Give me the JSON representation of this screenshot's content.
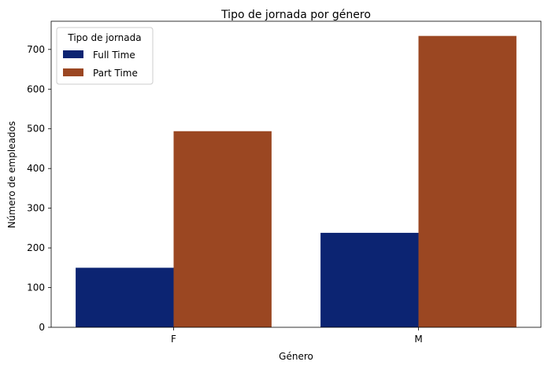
{
  "chart_data": {
    "type": "bar",
    "title": "Tipo de jornada por género",
    "xlabel": "Género",
    "ylabel": "Número de empleados",
    "categories": [
      "F",
      "M"
    ],
    "series": [
      {
        "name": "Full Time",
        "values": [
          150,
          238
        ],
        "color": "#0c2472"
      },
      {
        "name": "Part Time",
        "values": [
          494,
          734
        ],
        "color": "#9b4722"
      }
    ],
    "ylim": [
      0,
      771
    ],
    "yticks": [
      0,
      100,
      200,
      300,
      400,
      500,
      600,
      700
    ],
    "legend": {
      "title": "Tipo de jornada",
      "position": "top-left"
    },
    "grid": false
  }
}
